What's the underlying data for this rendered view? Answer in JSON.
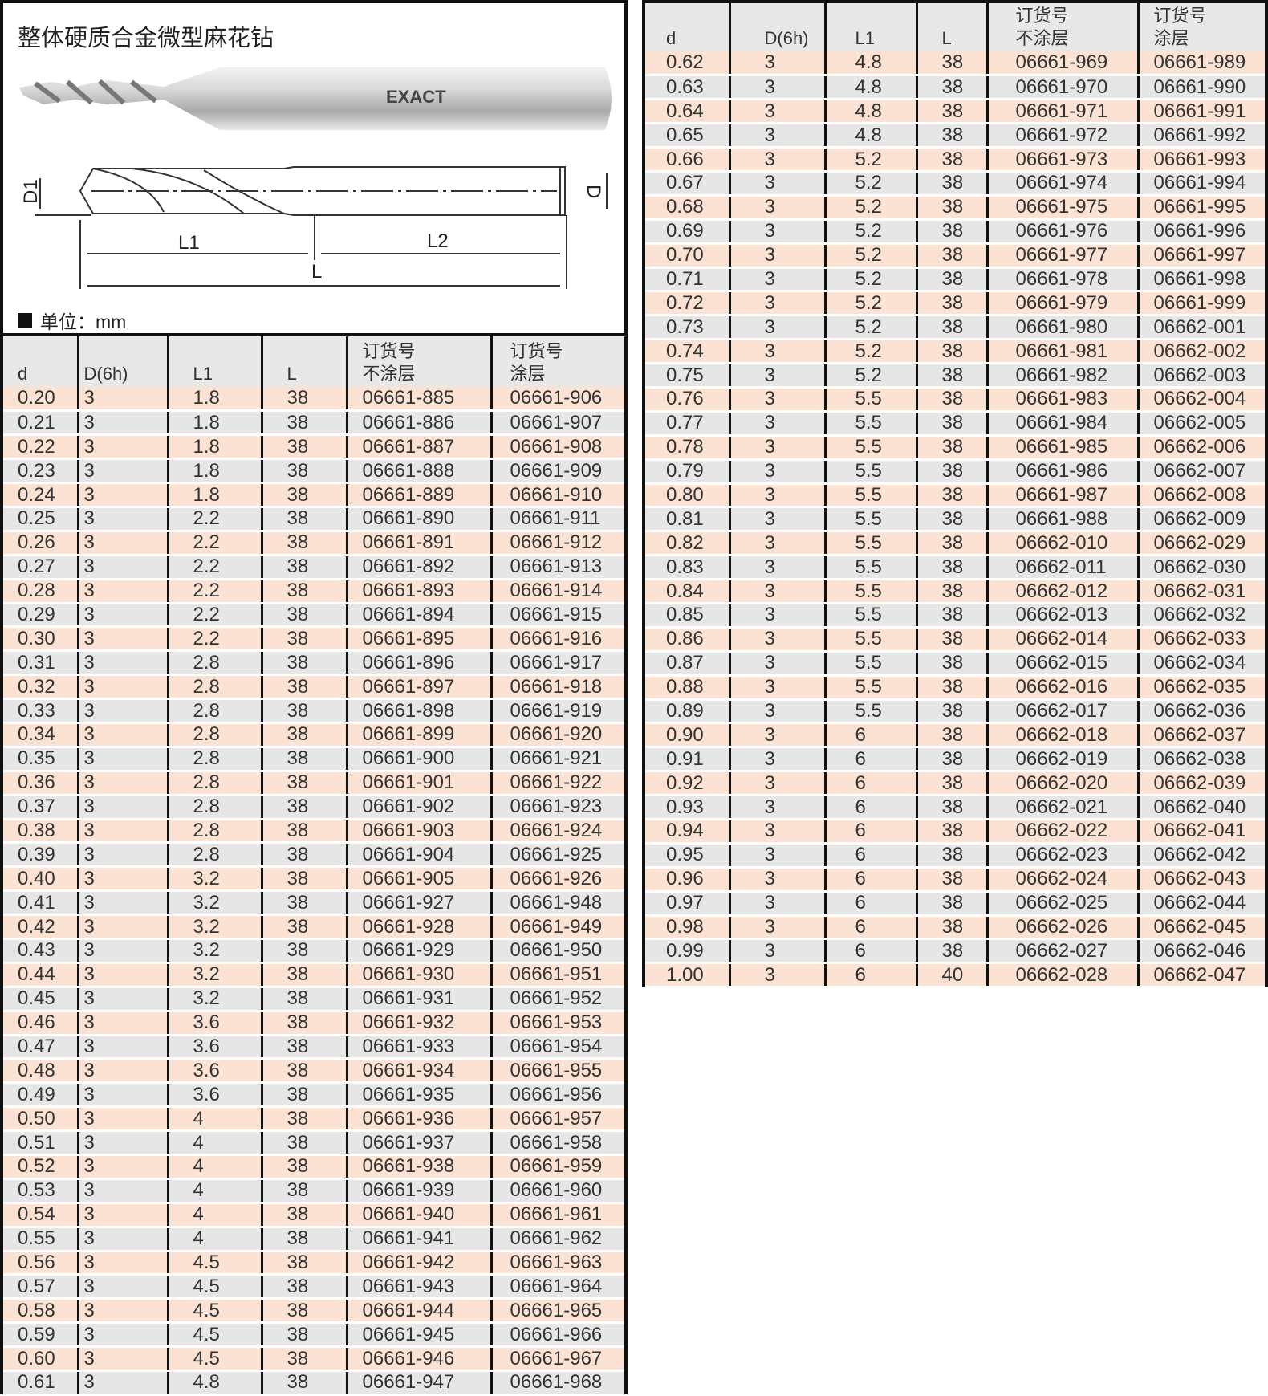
{
  "title": "整体硬质合金微型麻花钻",
  "unit_label": "单位：mm",
  "brand_logo": "EXACT",
  "diagram_labels": {
    "d1": "D1",
    "d": "D",
    "l1": "L1",
    "l2": "L2",
    "l": "L"
  },
  "colors": {
    "row_odd": "#fbe2d2",
    "row_even": "#e6e6e6",
    "header": "#e8e8e8",
    "border": "#111111"
  },
  "columns": [
    "d",
    "D(6h)",
    "L1",
    "L",
    "订货号\n不涂层",
    "订货号\n涂层"
  ],
  "left_rows": [
    [
      "0.20",
      "3",
      "1.8",
      "38",
      "06661-885",
      "06661-906"
    ],
    [
      "0.21",
      "3",
      "1.8",
      "38",
      "06661-886",
      "06661-907"
    ],
    [
      "0.22",
      "3",
      "1.8",
      "38",
      "06661-887",
      "06661-908"
    ],
    [
      "0.23",
      "3",
      "1.8",
      "38",
      "06661-888",
      "06661-909"
    ],
    [
      "0.24",
      "3",
      "1.8",
      "38",
      "06661-889",
      "06661-910"
    ],
    [
      "0.25",
      "3",
      "2.2",
      "38",
      "06661-890",
      "06661-911"
    ],
    [
      "0.26",
      "3",
      "2.2",
      "38",
      "06661-891",
      "06661-912"
    ],
    [
      "0.27",
      "3",
      "2.2",
      "38",
      "06661-892",
      "06661-913"
    ],
    [
      "0.28",
      "3",
      "2.2",
      "38",
      "06661-893",
      "06661-914"
    ],
    [
      "0.29",
      "3",
      "2.2",
      "38",
      "06661-894",
      "06661-915"
    ],
    [
      "0.30",
      "3",
      "2.2",
      "38",
      "06661-895",
      "06661-916"
    ],
    [
      "0.31",
      "3",
      "2.8",
      "38",
      "06661-896",
      "06661-917"
    ],
    [
      "0.32",
      "3",
      "2.8",
      "38",
      "06661-897",
      "06661-918"
    ],
    [
      "0.33",
      "3",
      "2.8",
      "38",
      "06661-898",
      "06661-919"
    ],
    [
      "0.34",
      "3",
      "2.8",
      "38",
      "06661-899",
      "06661-920"
    ],
    [
      "0.35",
      "3",
      "2.8",
      "38",
      "06661-900",
      "06661-921"
    ],
    [
      "0.36",
      "3",
      "2.8",
      "38",
      "06661-901",
      "06661-922"
    ],
    [
      "0.37",
      "3",
      "2.8",
      "38",
      "06661-902",
      "06661-923"
    ],
    [
      "0.38",
      "3",
      "2.8",
      "38",
      "06661-903",
      "06661-924"
    ],
    [
      "0.39",
      "3",
      "2.8",
      "38",
      "06661-904",
      "06661-925"
    ],
    [
      "0.40",
      "3",
      "3.2",
      "38",
      "06661-905",
      "06661-926"
    ],
    [
      "0.41",
      "3",
      "3.2",
      "38",
      "06661-927",
      "06661-948"
    ],
    [
      "0.42",
      "3",
      "3.2",
      "38",
      "06661-928",
      "06661-949"
    ],
    [
      "0.43",
      "3",
      "3.2",
      "38",
      "06661-929",
      "06661-950"
    ],
    [
      "0.44",
      "3",
      "3.2",
      "38",
      "06661-930",
      "06661-951"
    ],
    [
      "0.45",
      "3",
      "3.2",
      "38",
      "06661-931",
      "06661-952"
    ],
    [
      "0.46",
      "3",
      "3.6",
      "38",
      "06661-932",
      "06661-953"
    ],
    [
      "0.47",
      "3",
      "3.6",
      "38",
      "06661-933",
      "06661-954"
    ],
    [
      "0.48",
      "3",
      "3.6",
      "38",
      "06661-934",
      "06661-955"
    ],
    [
      "0.49",
      "3",
      "3.6",
      "38",
      "06661-935",
      "06661-956"
    ],
    [
      "0.50",
      "3",
      "4",
      "38",
      "06661-936",
      "06661-957"
    ],
    [
      "0.51",
      "3",
      "4",
      "38",
      "06661-937",
      "06661-958"
    ],
    [
      "0.52",
      "3",
      "4",
      "38",
      "06661-938",
      "06661-959"
    ],
    [
      "0.53",
      "3",
      "4",
      "38",
      "06661-939",
      "06661-960"
    ],
    [
      "0.54",
      "3",
      "4",
      "38",
      "06661-940",
      "06661-961"
    ],
    [
      "0.55",
      "3",
      "4",
      "38",
      "06661-941",
      "06661-962"
    ],
    [
      "0.56",
      "3",
      "4.5",
      "38",
      "06661-942",
      "06661-963"
    ],
    [
      "0.57",
      "3",
      "4.5",
      "38",
      "06661-943",
      "06661-964"
    ],
    [
      "0.58",
      "3",
      "4.5",
      "38",
      "06661-944",
      "06661-965"
    ],
    [
      "0.59",
      "3",
      "4.5",
      "38",
      "06661-945",
      "06661-966"
    ],
    [
      "0.60",
      "3",
      "4.5",
      "38",
      "06661-946",
      "06661-967"
    ],
    [
      "0.61",
      "3",
      "4.8",
      "38",
      "06661-947",
      "06661-968"
    ]
  ],
  "right_rows": [
    [
      "0.62",
      "3",
      "4.8",
      "38",
      "06661-969",
      "06661-989"
    ],
    [
      "0.63",
      "3",
      "4.8",
      "38",
      "06661-970",
      "06661-990"
    ],
    [
      "0.64",
      "3",
      "4.8",
      "38",
      "06661-971",
      "06661-991"
    ],
    [
      "0.65",
      "3",
      "4.8",
      "38",
      "06661-972",
      "06661-992"
    ],
    [
      "0.66",
      "3",
      "5.2",
      "38",
      "06661-973",
      "06661-993"
    ],
    [
      "0.67",
      "3",
      "5.2",
      "38",
      "06661-974",
      "06661-994"
    ],
    [
      "0.68",
      "3",
      "5.2",
      "38",
      "06661-975",
      "06661-995"
    ],
    [
      "0.69",
      "3",
      "5.2",
      "38",
      "06661-976",
      "06661-996"
    ],
    [
      "0.70",
      "3",
      "5.2",
      "38",
      "06661-977",
      "06661-997"
    ],
    [
      "0.71",
      "3",
      "5.2",
      "38",
      "06661-978",
      "06661-998"
    ],
    [
      "0.72",
      "3",
      "5.2",
      "38",
      "06661-979",
      "06661-999"
    ],
    [
      "0.73",
      "3",
      "5.2",
      "38",
      "06661-980",
      "06662-001"
    ],
    [
      "0.74",
      "3",
      "5.2",
      "38",
      "06661-981",
      "06662-002"
    ],
    [
      "0.75",
      "3",
      "5.2",
      "38",
      "06661-982",
      "06662-003"
    ],
    [
      "0.76",
      "3",
      "5.5",
      "38",
      "06661-983",
      "06662-004"
    ],
    [
      "0.77",
      "3",
      "5.5",
      "38",
      "06661-984",
      "06662-005"
    ],
    [
      "0.78",
      "3",
      "5.5",
      "38",
      "06661-985",
      "06662-006"
    ],
    [
      "0.79",
      "3",
      "5.5",
      "38",
      "06661-986",
      "06662-007"
    ],
    [
      "0.80",
      "3",
      "5.5",
      "38",
      "06661-987",
      "06662-008"
    ],
    [
      "0.81",
      "3",
      "5.5",
      "38",
      "06661-988",
      "06662-009"
    ],
    [
      "0.82",
      "3",
      "5.5",
      "38",
      "06662-010",
      "06662-029"
    ],
    [
      "0.83",
      "3",
      "5.5",
      "38",
      "06662-011",
      "06662-030"
    ],
    [
      "0.84",
      "3",
      "5.5",
      "38",
      "06662-012",
      "06662-031"
    ],
    [
      "0.85",
      "3",
      "5.5",
      "38",
      "06662-013",
      "06662-032"
    ],
    [
      "0.86",
      "3",
      "5.5",
      "38",
      "06662-014",
      "06662-033"
    ],
    [
      "0.87",
      "3",
      "5.5",
      "38",
      "06662-015",
      "06662-034"
    ],
    [
      "0.88",
      "3",
      "5.5",
      "38",
      "06662-016",
      "06662-035"
    ],
    [
      "0.89",
      "3",
      "5.5",
      "38",
      "06662-017",
      "06662-036"
    ],
    [
      "0.90",
      "3",
      "6",
      "38",
      "06662-018",
      "06662-037"
    ],
    [
      "0.91",
      "3",
      "6",
      "38",
      "06662-019",
      "06662-038"
    ],
    [
      "0.92",
      "3",
      "6",
      "38",
      "06662-020",
      "06662-039"
    ],
    [
      "0.93",
      "3",
      "6",
      "38",
      "06662-021",
      "06662-040"
    ],
    [
      "0.94",
      "3",
      "6",
      "38",
      "06662-022",
      "06662-041"
    ],
    [
      "0.95",
      "3",
      "6",
      "38",
      "06662-023",
      "06662-042"
    ],
    [
      "0.96",
      "3",
      "6",
      "38",
      "06662-024",
      "06662-043"
    ],
    [
      "0.97",
      "3",
      "6",
      "38",
      "06662-025",
      "06662-044"
    ],
    [
      "0.98",
      "3",
      "6",
      "38",
      "06662-026",
      "06662-045"
    ],
    [
      "0.99",
      "3",
      "6",
      "38",
      "06662-027",
      "06662-046"
    ],
    [
      "1.00",
      "3",
      "6",
      "40",
      "06662-028",
      "06662-047"
    ]
  ]
}
